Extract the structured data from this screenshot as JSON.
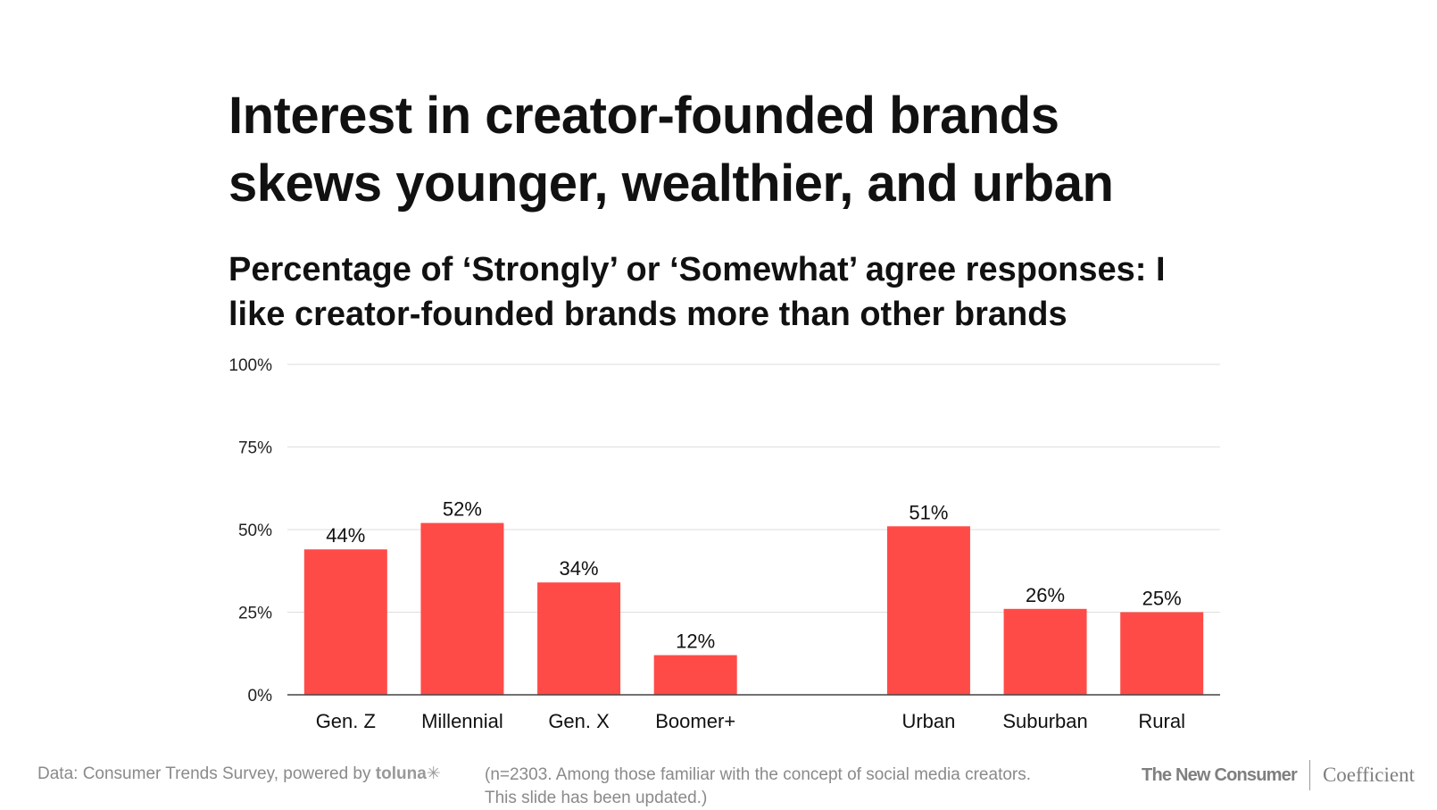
{
  "title_line1": "Interest in creator-founded brands",
  "title_line2": "skews younger, wealthier, and urban",
  "subtitle_line1": "Percentage of ‘Strongly’ or ‘Somewhat’ agree responses: I",
  "subtitle_line2": "like creator-founded brands more than other brands",
  "chart_data": {
    "type": "bar",
    "categories": [
      "Gen. Z",
      "Millennial",
      "Gen. X",
      "Boomer+",
      "",
      "Urban",
      "Suburban",
      "Rural"
    ],
    "values": [
      44,
      52,
      34,
      12,
      null,
      51,
      26,
      25
    ],
    "value_labels": [
      "44%",
      "52%",
      "34%",
      "12%",
      "",
      "51%",
      "26%",
      "25%"
    ],
    "y_ticks": [
      0,
      25,
      50,
      75,
      100
    ],
    "y_tick_labels": [
      "0%",
      "25%",
      "50%",
      "75%",
      "100%"
    ],
    "ylim": [
      0,
      100
    ],
    "grid": true,
    "bar_color": "#ff4b47",
    "title": "Percentage of ‘Strongly’ or ‘Somewhat’ agree responses: I like creator-founded brands more than other brands",
    "xlabel": "",
    "ylabel": ""
  },
  "footer": {
    "source_prefix": "Data: Consumer Trends Survey, powered by ",
    "source_brand": "toluna✳",
    "note_line1": "(n=2303. Among those familiar with the concept of social media creators.",
    "note_line2": "This slide has been updated.)",
    "logo_left": "The New Consumer",
    "logo_right": "Coefficient"
  }
}
